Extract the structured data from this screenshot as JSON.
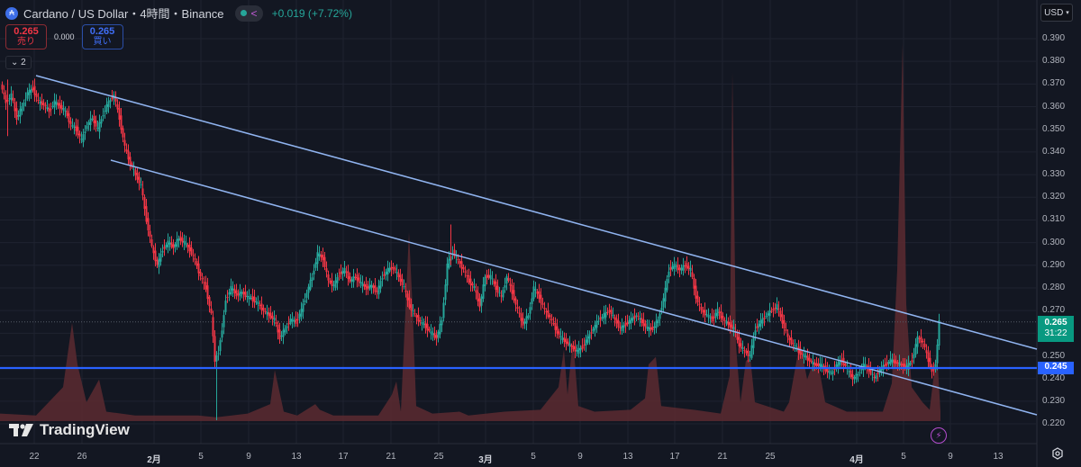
{
  "header": {
    "symbol_icon": "cardano-coin-icon",
    "title": "Cardano / US Dollar・4時間・Binance",
    "change": "+0.019 (+7.72%)",
    "status_icon": "market-open-dot-icon",
    "share_icon": "share-icon"
  },
  "trade": {
    "sell_price": "0.265",
    "sell_label": "売り",
    "spread": "0.000",
    "buy_price": "0.265",
    "buy_label": "買い"
  },
  "indicators_toggle": "2",
  "currency": "USD",
  "price_axis": [
    "0.390",
    "0.380",
    "0.370",
    "0.360",
    "0.350",
    "0.340",
    "0.330",
    "0.320",
    "0.310",
    "0.300",
    "0.290",
    "0.280",
    "0.270",
    "0.250",
    "0.240",
    "0.230",
    "0.220"
  ],
  "current_price_tag": {
    "price": "0.265",
    "countdown": "31:22",
    "color": "#089981"
  },
  "level_tag": {
    "price": "0.245",
    "color": "#2962ff"
  },
  "time_axis": [
    {
      "label": "22",
      "x": 38
    },
    {
      "label": "26",
      "x": 91
    },
    {
      "label": "2月",
      "x": 171,
      "bold": true
    },
    {
      "label": "5",
      "x": 223
    },
    {
      "label": "9",
      "x": 276
    },
    {
      "label": "13",
      "x": 329
    },
    {
      "label": "17",
      "x": 381
    },
    {
      "label": "21",
      "x": 434
    },
    {
      "label": "25",
      "x": 487
    },
    {
      "label": "3月",
      "x": 539,
      "bold": true
    },
    {
      "label": "5",
      "x": 592
    },
    {
      "label": "9",
      "x": 644
    },
    {
      "label": "13",
      "x": 697
    },
    {
      "label": "17",
      "x": 749
    },
    {
      "label": "21",
      "x": 802
    },
    {
      "label": "25",
      "x": 855
    },
    {
      "label": "4月",
      "x": 951,
      "bold": true
    },
    {
      "label": "5",
      "x": 1003
    },
    {
      "label": "9",
      "x": 1055
    },
    {
      "label": "13",
      "x": 1108
    }
  ],
  "logo": "TradingView",
  "colors": {
    "up": "#26a69a",
    "down": "#f23645",
    "trendline": "#90b4f0",
    "level": "#2962ff",
    "volume": "#5c2a30",
    "bg": "#131722",
    "grid": "#1f2330"
  },
  "chart_data": {
    "type": "candlestick",
    "title": "Cardano / US Dollar・4時間・Binance",
    "xlabel": "",
    "ylabel": "USD",
    "ylim": [
      0.215,
      0.395
    ],
    "x_ticks": [
      "22",
      "26",
      "2月",
      "5",
      "9",
      "13",
      "17",
      "21",
      "25",
      "3月",
      "5",
      "9",
      "13",
      "17",
      "21",
      "25",
      "4月",
      "5",
      "9",
      "13"
    ],
    "close_path": [
      [
        2,
        0.37
      ],
      [
        8,
        0.362
      ],
      [
        14,
        0.365
      ],
      [
        20,
        0.355
      ],
      [
        26,
        0.36
      ],
      [
        32,
        0.366
      ],
      [
        38,
        0.368
      ],
      [
        44,
        0.362
      ],
      [
        50,
        0.361
      ],
      [
        56,
        0.358
      ],
      [
        62,
        0.362
      ],
      [
        68,
        0.36
      ],
      [
        74,
        0.358
      ],
      [
        80,
        0.352
      ],
      [
        86,
        0.35
      ],
      [
        92,
        0.345
      ],
      [
        98,
        0.352
      ],
      [
        104,
        0.355
      ],
      [
        110,
        0.35
      ],
      [
        116,
        0.357
      ],
      [
        122,
        0.362
      ],
      [
        128,
        0.365
      ],
      [
        134,
        0.355
      ],
      [
        140,
        0.342
      ],
      [
        146,
        0.335
      ],
      [
        152,
        0.33
      ],
      [
        158,
        0.325
      ],
      [
        164,
        0.31
      ],
      [
        170,
        0.298
      ],
      [
        176,
        0.29
      ],
      [
        182,
        0.297
      ],
      [
        188,
        0.3
      ],
      [
        194,
        0.298
      ],
      [
        200,
        0.302
      ],
      [
        206,
        0.3
      ],
      [
        212,
        0.297
      ],
      [
        218,
        0.292
      ],
      [
        224,
        0.285
      ],
      [
        230,
        0.28
      ],
      [
        236,
        0.268
      ],
      [
        240,
        0.248
      ],
      [
        244,
        0.252
      ],
      [
        248,
        0.262
      ],
      [
        252,
        0.275
      ],
      [
        258,
        0.28
      ],
      [
        264,
        0.277
      ],
      [
        270,
        0.278
      ],
      [
        276,
        0.276
      ],
      [
        282,
        0.275
      ],
      [
        288,
        0.273
      ],
      [
        294,
        0.27
      ],
      [
        300,
        0.268
      ],
      [
        306,
        0.266
      ],
      [
        312,
        0.258
      ],
      [
        318,
        0.262
      ],
      [
        324,
        0.266
      ],
      [
        330,
        0.265
      ],
      [
        336,
        0.27
      ],
      [
        342,
        0.278
      ],
      [
        348,
        0.285
      ],
      [
        354,
        0.295
      ],
      [
        360,
        0.293
      ],
      [
        366,
        0.283
      ],
      [
        372,
        0.281
      ],
      [
        378,
        0.286
      ],
      [
        384,
        0.288
      ],
      [
        390,
        0.283
      ],
      [
        396,
        0.285
      ],
      [
        402,
        0.282
      ],
      [
        408,
        0.28
      ],
      [
        414,
        0.281
      ],
      [
        420,
        0.278
      ],
      [
        426,
        0.285
      ],
      [
        432,
        0.288
      ],
      [
        438,
        0.289
      ],
      [
        444,
        0.285
      ],
      [
        450,
        0.28
      ],
      [
        456,
        0.272
      ],
      [
        462,
        0.268
      ],
      [
        468,
        0.265
      ],
      [
        474,
        0.263
      ],
      [
        480,
        0.26
      ],
      [
        486,
        0.258
      ],
      [
        492,
        0.266
      ],
      [
        498,
        0.29
      ],
      [
        504,
        0.296
      ],
      [
        510,
        0.292
      ],
      [
        516,
        0.288
      ],
      [
        522,
        0.283
      ],
      [
        528,
        0.28
      ],
      [
        534,
        0.272
      ],
      [
        540,
        0.285
      ],
      [
        546,
        0.285
      ],
      [
        552,
        0.28
      ],
      [
        558,
        0.276
      ],
      [
        564,
        0.285
      ],
      [
        570,
        0.278
      ],
      [
        576,
        0.27
      ],
      [
        582,
        0.264
      ],
      [
        588,
        0.268
      ],
      [
        594,
        0.28
      ],
      [
        600,
        0.276
      ],
      [
        606,
        0.27
      ],
      [
        612,
        0.267
      ],
      [
        618,
        0.262
      ],
      [
        624,
        0.258
      ],
      [
        630,
        0.256
      ],
      [
        636,
        0.254
      ],
      [
        642,
        0.252
      ],
      [
        648,
        0.254
      ],
      [
        654,
        0.258
      ],
      [
        660,
        0.262
      ],
      [
        666,
        0.266
      ],
      [
        672,
        0.268
      ],
      [
        678,
        0.27
      ],
      [
        684,
        0.266
      ],
      [
        690,
        0.262
      ],
      [
        696,
        0.264
      ],
      [
        702,
        0.266
      ],
      [
        708,
        0.268
      ],
      [
        714,
        0.265
      ],
      [
        720,
        0.262
      ],
      [
        726,
        0.262
      ],
      [
        732,
        0.266
      ],
      [
        738,
        0.275
      ],
      [
        744,
        0.288
      ],
      [
        750,
        0.29
      ],
      [
        756,
        0.288
      ],
      [
        762,
        0.29
      ],
      [
        768,
        0.288
      ],
      [
        774,
        0.276
      ],
      [
        780,
        0.27
      ],
      [
        786,
        0.268
      ],
      [
        792,
        0.266
      ],
      [
        798,
        0.27
      ],
      [
        804,
        0.266
      ],
      [
        810,
        0.264
      ],
      [
        816,
        0.262
      ],
      [
        822,
        0.255
      ],
      [
        828,
        0.252
      ],
      [
        834,
        0.25
      ],
      [
        840,
        0.262
      ],
      [
        846,
        0.265
      ],
      [
        852,
        0.268
      ],
      [
        858,
        0.27
      ],
      [
        864,
        0.272
      ],
      [
        870,
        0.265
      ],
      [
        876,
        0.258
      ],
      [
        882,
        0.255
      ],
      [
        888,
        0.252
      ],
      [
        894,
        0.25
      ],
      [
        900,
        0.248
      ],
      [
        906,
        0.246
      ],
      [
        912,
        0.246
      ],
      [
        918,
        0.244
      ],
      [
        924,
        0.242
      ],
      [
        930,
        0.246
      ],
      [
        936,
        0.248
      ],
      [
        942,
        0.244
      ],
      [
        948,
        0.24
      ],
      [
        954,
        0.242
      ],
      [
        960,
        0.246
      ],
      [
        966,
        0.244
      ],
      [
        972,
        0.24
      ],
      [
        978,
        0.244
      ],
      [
        984,
        0.246
      ],
      [
        990,
        0.248
      ],
      [
        996,
        0.247
      ],
      [
        1002,
        0.246
      ],
      [
        1008,
        0.245
      ],
      [
        1014,
        0.248
      ],
      [
        1020,
        0.258
      ],
      [
        1026,
        0.256
      ],
      [
        1032,
        0.248
      ],
      [
        1036,
        0.243
      ],
      [
        1040,
        0.246
      ],
      [
        1044,
        0.265
      ]
    ],
    "volume_path": [
      [
        0,
        0.04
      ],
      [
        40,
        0.03
      ],
      [
        70,
        0.18
      ],
      [
        80,
        0.52
      ],
      [
        86,
        0.3
      ],
      [
        96,
        0.1
      ],
      [
        110,
        0.22
      ],
      [
        118,
        0.05
      ],
      [
        150,
        0.03
      ],
      [
        220,
        0.03
      ],
      [
        240,
        0.02
      ],
      [
        275,
        0.04
      ],
      [
        300,
        0.09
      ],
      [
        305,
        0.27
      ],
      [
        315,
        0.05
      ],
      [
        330,
        0.03
      ],
      [
        350,
        0.09
      ],
      [
        355,
        0.06
      ],
      [
        370,
        0.03
      ],
      [
        420,
        0.03
      ],
      [
        435,
        0.14
      ],
      [
        440,
        0.21
      ],
      [
        445,
        0.05
      ],
      [
        450,
        0.58
      ],
      [
        454,
        1.0
      ],
      [
        458,
        0.6
      ],
      [
        462,
        0.08
      ],
      [
        480,
        0.04
      ],
      [
        510,
        0.05
      ],
      [
        520,
        0.03
      ],
      [
        560,
        0.05
      ],
      [
        600,
        0.06
      ],
      [
        620,
        0.18
      ],
      [
        626,
        0.38
      ],
      [
        630,
        0.14
      ],
      [
        636,
        0.44
      ],
      [
        642,
        0.08
      ],
      [
        660,
        0.05
      ],
      [
        700,
        0.06
      ],
      [
        716,
        0.12
      ],
      [
        720,
        0.3
      ],
      [
        728,
        0.34
      ],
      [
        734,
        0.08
      ],
      [
        770,
        0.06
      ],
      [
        800,
        0.04
      ],
      [
        810,
        0.24
      ],
      [
        813,
        1.85
      ],
      [
        817,
        0.4
      ],
      [
        822,
        0.1
      ],
      [
        828,
        0.32
      ],
      [
        833,
        0.33
      ],
      [
        838,
        0.1
      ],
      [
        870,
        0.05
      ],
      [
        876,
        0.1
      ],
      [
        888,
        0.42
      ],
      [
        896,
        0.22
      ],
      [
        902,
        0.3
      ],
      [
        910,
        0.26
      ],
      [
        916,
        0.1
      ],
      [
        940,
        0.05
      ],
      [
        960,
        0.05
      ],
      [
        980,
        0.05
      ],
      [
        990,
        0.2
      ],
      [
        996,
        0.8
      ],
      [
        1002,
        2.0
      ],
      [
        1006,
        0.62
      ],
      [
        1012,
        0.18
      ],
      [
        1024,
        0.1
      ],
      [
        1032,
        0.06
      ],
      [
        1040,
        0.38
      ],
      [
        1044,
        0.05
      ]
    ],
    "trendlines": [
      {
        "name": "upper-descending",
        "from": [
          40,
          84
        ],
        "to": [
          1151,
          388
        ]
      },
      {
        "name": "lower-descending",
        "from": [
          123,
          178
        ],
        "to": [
          1151,
          461
        ]
      }
    ],
    "horizontal_level": 0.245,
    "last": {
      "price": 0.265,
      "change": 0.019,
      "change_pct": 7.72
    }
  }
}
